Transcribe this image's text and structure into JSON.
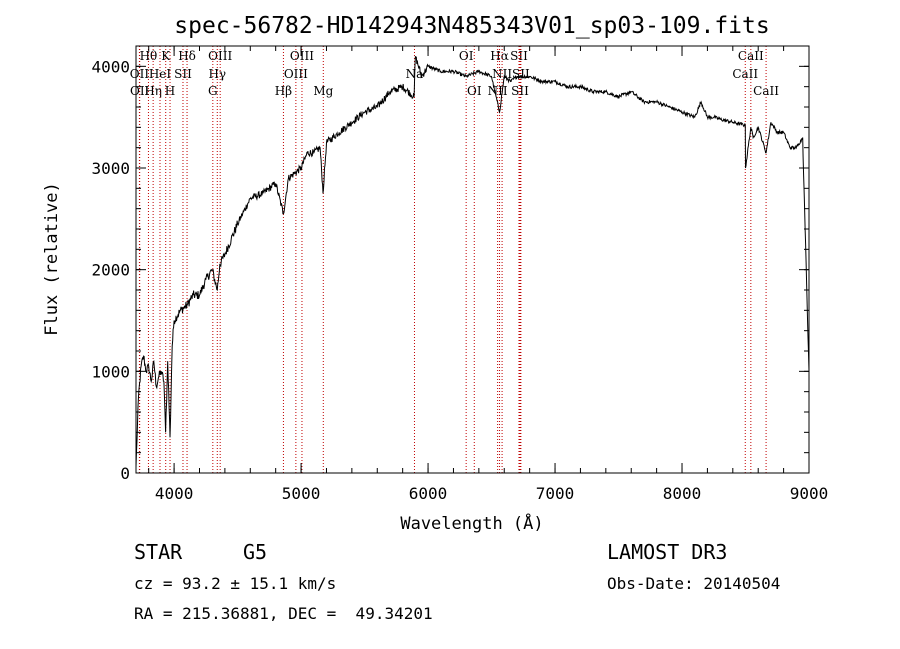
{
  "chart_data": {
    "type": "line",
    "title": "spec-56782-HD142943N485343V01_sp03-109.fits",
    "xlabel": "Wavelength (Å)",
    "ylabel": "Flux (relative)",
    "xlim": [
      3700,
      9000
    ],
    "ylim": [
      0,
      4200
    ],
    "xticks": [
      4000,
      5000,
      6000,
      7000,
      8000,
      9000
    ],
    "yticks": [
      0,
      1000,
      2000,
      3000,
      4000
    ],
    "series": [
      {
        "name": "flux",
        "x": [
          3700,
          3720,
          3740,
          3760,
          3780,
          3800,
          3820,
          3840,
          3860,
          3880,
          3900,
          3920,
          3933,
          3950,
          3968,
          3985,
          4000,
          4050,
          4102,
          4150,
          4200,
          4250,
          4300,
          4340,
          4360,
          4400,
          4450,
          4500,
          4600,
          4700,
          4800,
          4861,
          4900,
          4950,
          5000,
          5050,
          5100,
          5150,
          5173,
          5200,
          5300,
          5400,
          5500,
          5600,
          5700,
          5800,
          5890,
          5900,
          5950,
          6000,
          6100,
          6200,
          6300,
          6400,
          6500,
          6563,
          6600,
          6650,
          6700,
          6800,
          6900,
          7000,
          7100,
          7200,
          7300,
          7400,
          7500,
          7600,
          7700,
          7800,
          7900,
          8000,
          8100,
          8150,
          8200,
          8250,
          8300,
          8400,
          8498,
          8500,
          8542,
          8560,
          8600,
          8662,
          8700,
          8750,
          8800,
          8850,
          8900,
          8950,
          9000
        ],
        "y": [
          60,
          750,
          1050,
          1150,
          1000,
          1050,
          900,
          1100,
          850,
          950,
          1000,
          900,
          400,
          1100,
          350,
          1250,
          1500,
          1600,
          1650,
          1750,
          1750,
          1900,
          2000,
          1800,
          2050,
          2150,
          2300,
          2450,
          2700,
          2750,
          2850,
          2550,
          2900,
          2950,
          3000,
          3150,
          3150,
          3200,
          2750,
          3250,
          3350,
          3450,
          3550,
          3600,
          3750,
          3800,
          3700,
          4100,
          3900,
          4000,
          3950,
          3950,
          3900,
          3950,
          3900,
          3550,
          3900,
          3850,
          3900,
          3900,
          3850,
          3850,
          3800,
          3800,
          3750,
          3750,
          3700,
          3750,
          3650,
          3650,
          3600,
          3550,
          3500,
          3650,
          3500,
          3500,
          3480,
          3450,
          3420,
          3000,
          3400,
          3300,
          3400,
          3150,
          3450,
          3350,
          3350,
          3200,
          3200,
          3300,
          1000
        ]
      }
    ],
    "spectral_lines": [
      {
        "label": "Hθ",
        "wavelength": 3798,
        "row": 0
      },
      {
        "label": "OII",
        "wavelength": 3727,
        "row": 1
      },
      {
        "label": "OII",
        "wavelength": 3729,
        "row": 2
      },
      {
        "label": "Hη",
        "wavelength": 3835,
        "row": 2
      },
      {
        "label": "HeI",
        "wavelength": 3889,
        "row": 1
      },
      {
        "label": "K",
        "wavelength": 3934,
        "row": 0
      },
      {
        "label": "H",
        "wavelength": 3968,
        "row": 2
      },
      {
        "label": "SII",
        "wavelength": 4070,
        "row": 1
      },
      {
        "label": "Hδ",
        "wavelength": 4102,
        "row": 0
      },
      {
        "label": "OIII",
        "wavelength": 4363,
        "row": 0
      },
      {
        "label": "Hγ",
        "wavelength": 4340,
        "row": 1
      },
      {
        "label": "G",
        "wavelength": 4305,
        "row": 2
      },
      {
        "label": "Hβ",
        "wavelength": 4861,
        "row": 2
      },
      {
        "label": "OIII",
        "wavelength": 5007,
        "row": 0
      },
      {
        "label": "OIII",
        "wavelength": 4959,
        "row": 1
      },
      {
        "label": "Mg",
        "wavelength": 5175,
        "row": 2
      },
      {
        "label": "Na",
        "wavelength": 5893,
        "row": 1
      },
      {
        "label": "OI",
        "wavelength": 6300,
        "row": 0
      },
      {
        "label": "OI",
        "wavelength": 6364,
        "row": 2
      },
      {
        "label": "Hα",
        "wavelength": 6563,
        "row": 0
      },
      {
        "label": "NII",
        "wavelength": 6583,
        "row": 1
      },
      {
        "label": "NII",
        "wavelength": 6548,
        "row": 2
      },
      {
        "label": "SII",
        "wavelength": 6716,
        "row": 0
      },
      {
        "label": "SII",
        "wavelength": 6731,
        "row": 1
      },
      {
        "label": "SII",
        "wavelength": 6724,
        "row": 2
      },
      {
        "label": "CaII",
        "wavelength": 8542,
        "row": 0
      },
      {
        "label": "CaII",
        "wavelength": 8498,
        "row": 1
      },
      {
        "label": "CaII",
        "wavelength": 8662,
        "row": 2
      }
    ]
  },
  "info": {
    "object_class": "STAR",
    "subclass": "G5",
    "survey": "LAMOST DR3",
    "redshift": "cz = 93.2 ± 15.1 km/s",
    "obs_date": "Obs-Date: 20140504",
    "coords": "RA = 215.36881, DEC =  49.34201"
  }
}
